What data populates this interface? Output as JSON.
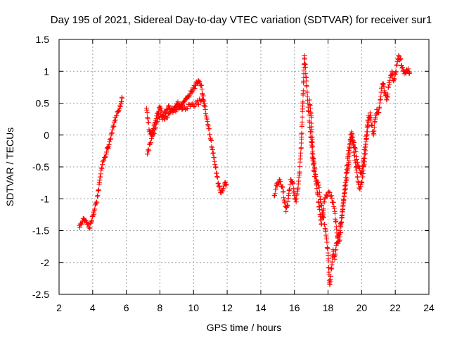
{
  "chart_data": {
    "type": "scatter",
    "title": "Day 195 of 2021, Sidereal Day-to-day VTEC variation (SDTVAR) for receiver sur1",
    "xlabel": "GPS time / hours",
    "ylabel": "SDTVAR / TECUs",
    "xlim": [
      2,
      24
    ],
    "ylim": [
      -2.5,
      1.5
    ],
    "xticks": [
      2,
      4,
      6,
      8,
      10,
      12,
      14,
      16,
      18,
      20,
      22,
      24
    ],
    "xtick_labels": [
      "2",
      "4",
      "6",
      "8",
      "10",
      "12",
      "14",
      "16",
      "18",
      "20",
      "22",
      "24"
    ],
    "yticks": [
      -2.5,
      -2,
      -1.5,
      -1,
      -0.5,
      0,
      0.5,
      1,
      1.5
    ],
    "ytick_labels": [
      "-2.5",
      "-2",
      "-1.5",
      "-1",
      "-0.5",
      "0",
      "0.5",
      "1",
      "1.5"
    ],
    "grid": true,
    "marker": "+",
    "color": "#ff0000",
    "series": [
      {
        "name": "sur1",
        "segments": [
          [
            [
              3.2,
              -1.42
            ],
            [
              3.3,
              -1.4
            ],
            [
              3.4,
              -1.35
            ],
            [
              3.5,
              -1.32
            ],
            [
              3.6,
              -1.34
            ],
            [
              3.7,
              -1.4
            ],
            [
              3.8,
              -1.45
            ],
            [
              3.9,
              -1.38
            ],
            [
              4.0,
              -1.28
            ],
            [
              4.1,
              -1.18
            ],
            [
              4.2,
              -1.08
            ],
            [
              4.3,
              -0.95
            ],
            [
              4.4,
              -0.75
            ],
            [
              4.5,
              -0.55
            ],
            [
              4.6,
              -0.42
            ],
            [
              4.7,
              -0.35
            ],
            [
              4.8,
              -0.3
            ],
            [
              4.9,
              -0.2
            ],
            [
              5.0,
              -0.1
            ],
            [
              5.1,
              0.0
            ],
            [
              5.2,
              0.12
            ],
            [
              5.3,
              0.22
            ],
            [
              5.4,
              0.3
            ],
            [
              5.5,
              0.36
            ],
            [
              5.6,
              0.42
            ],
            [
              5.7,
              0.52
            ],
            [
              5.75,
              0.58
            ]
          ],
          [
            [
              7.2,
              0.42
            ],
            [
              7.3,
              0.2
            ],
            [
              7.4,
              0.05
            ],
            [
              7.5,
              0.0
            ],
            [
              7.6,
              0.1
            ],
            [
              7.7,
              0.2
            ],
            [
              7.8,
              0.3
            ],
            [
              7.9,
              0.35
            ],
            [
              8.0,
              0.45
            ],
            [
              8.1,
              0.38
            ],
            [
              8.2,
              0.3
            ],
            [
              8.3,
              0.35
            ],
            [
              8.4,
              0.4
            ],
            [
              8.5,
              0.45
            ],
            [
              8.6,
              0.42
            ],
            [
              8.7,
              0.38
            ],
            [
              8.8,
              0.4
            ],
            [
              8.9,
              0.45
            ],
            [
              9.0,
              0.5
            ],
            [
              9.1,
              0.48
            ],
            [
              9.2,
              0.45
            ],
            [
              9.3,
              0.48
            ],
            [
              9.4,
              0.52
            ],
            [
              9.5,
              0.55
            ],
            [
              9.6,
              0.58
            ],
            [
              9.7,
              0.6
            ],
            [
              9.8,
              0.65
            ],
            [
              9.9,
              0.68
            ],
            [
              10.0,
              0.72
            ],
            [
              10.1,
              0.78
            ],
            [
              10.2,
              0.82
            ],
            [
              10.3,
              0.85
            ],
            [
              10.4,
              0.8
            ],
            [
              10.5,
              0.72
            ],
            [
              10.6,
              0.55
            ],
            [
              10.7,
              0.4
            ],
            [
              10.8,
              0.25
            ],
            [
              10.9,
              0.1
            ],
            [
              11.0,
              -0.05
            ],
            [
              11.1,
              -0.2
            ],
            [
              11.2,
              -0.35
            ],
            [
              11.3,
              -0.5
            ],
            [
              11.4,
              -0.65
            ],
            [
              11.5,
              -0.8
            ],
            [
              11.6,
              -0.9
            ],
            [
              11.7,
              -0.88
            ],
            [
              11.8,
              -0.8
            ],
            [
              11.9,
              -0.75
            ],
            [
              11.95,
              -0.77
            ]
          ],
          [
            [
              7.25,
              -0.3
            ],
            [
              7.4,
              -0.15
            ],
            [
              7.6,
              0.0
            ],
            [
              7.8,
              0.2
            ],
            [
              8.0,
              0.3
            ],
            [
              8.3,
              0.25
            ],
            [
              8.6,
              0.35
            ],
            [
              9.0,
              0.4
            ],
            [
              9.4,
              0.42
            ],
            [
              9.8,
              0.45
            ],
            [
              10.2,
              0.5
            ],
            [
              10.5,
              0.55
            ],
            [
              10.7,
              0.45
            ]
          ],
          [
            [
              14.8,
              -0.95
            ],
            [
              14.9,
              -0.85
            ],
            [
              15.0,
              -0.75
            ],
            [
              15.1,
              -0.7
            ],
            [
              15.2,
              -0.78
            ],
            [
              15.3,
              -0.82
            ],
            [
              15.5,
              -1.2
            ],
            [
              15.6,
              -1.1
            ],
            [
              15.7,
              -0.85
            ],
            [
              15.8,
              -0.7
            ],
            [
              15.9,
              -0.75
            ],
            [
              16.0,
              -0.95
            ],
            [
              16.1,
              -1.05
            ],
            [
              16.2,
              -0.85
            ],
            [
              16.3,
              -0.6
            ],
            [
              16.4,
              -0.2
            ],
            [
              16.5,
              0.5
            ],
            [
              16.55,
              0.9
            ],
            [
              16.6,
              1.25
            ],
            [
              16.7,
              0.9
            ],
            [
              16.8,
              0.5
            ],
            [
              16.9,
              0.2
            ],
            [
              17.0,
              -0.1
            ],
            [
              17.1,
              -0.4
            ],
            [
              17.2,
              -0.65
            ],
            [
              17.3,
              -0.7
            ],
            [
              17.4,
              -0.75
            ],
            [
              17.5,
              -0.9
            ],
            [
              17.6,
              -1.1
            ],
            [
              17.7,
              -1.25
            ],
            [
              17.8,
              -1.4
            ],
            [
              17.9,
              -1.6
            ],
            [
              18.0,
              -1.85
            ],
            [
              18.05,
              -2.15
            ],
            [
              18.1,
              -2.35
            ],
            [
              18.2,
              -2.1
            ],
            [
              18.3,
              -1.8
            ],
            [
              18.4,
              -1.95
            ],
            [
              18.5,
              -1.7
            ],
            [
              18.6,
              -1.6
            ],
            [
              18.7,
              -1.5
            ],
            [
              18.8,
              -1.3
            ],
            [
              18.9,
              -1.1
            ],
            [
              19.0,
              -0.9
            ],
            [
              19.1,
              -0.7
            ],
            [
              19.2,
              -0.5
            ],
            [
              19.3,
              -0.2
            ],
            [
              19.4,
              0.0
            ],
            [
              19.5,
              -0.15
            ],
            [
              19.6,
              -0.4
            ],
            [
              19.7,
              -0.55
            ],
            [
              19.8,
              -0.75
            ],
            [
              19.9,
              -0.85
            ],
            [
              20.0,
              -0.75
            ],
            [
              20.1,
              -0.55
            ],
            [
              20.2,
              -0.3
            ],
            [
              20.3,
              0.0
            ],
            [
              20.4,
              0.2
            ],
            [
              20.5,
              0.35
            ],
            [
              20.6,
              0.15
            ],
            [
              20.7,
              0.0
            ],
            [
              20.8,
              0.25
            ],
            [
              20.9,
              0.4
            ],
            [
              21.0,
              0.35
            ],
            [
              21.1,
              0.55
            ],
            [
              21.2,
              0.75
            ],
            [
              21.3,
              0.8
            ],
            [
              21.4,
              0.65
            ],
            [
              21.5,
              0.55
            ],
            [
              21.6,
              0.75
            ],
            [
              21.7,
              0.9
            ],
            [
              21.8,
              1.0
            ],
            [
              21.9,
              0.85
            ],
            [
              22.0,
              0.95
            ],
            [
              22.1,
              1.1
            ],
            [
              22.2,
              1.25
            ],
            [
              22.3,
              1.2
            ],
            [
              22.4,
              1.05
            ],
            [
              22.5,
              1.0
            ],
            [
              22.6,
              0.98
            ],
            [
              22.7,
              1.02
            ],
            [
              22.8,
              1.0
            ],
            [
              22.85,
              0.98
            ]
          ],
          [
            [
              16.9,
              0.55
            ],
            [
              17.0,
              0.3
            ],
            [
              17.1,
              -0.3
            ],
            [
              17.6,
              -1.4
            ],
            [
              17.8,
              -1.0
            ],
            [
              18.0,
              -0.9
            ],
            [
              18.2,
              -0.95
            ],
            [
              18.4,
              -1.2
            ],
            [
              18.6,
              -1.7
            ],
            [
              18.7,
              -1.65
            ],
            [
              19.0,
              -0.8
            ],
            [
              19.2,
              -0.3
            ],
            [
              19.4,
              0.05
            ],
            [
              19.6,
              -0.2
            ],
            [
              19.8,
              -0.5
            ],
            [
              20.0,
              -0.6
            ],
            [
              20.2,
              -0.2
            ],
            [
              20.4,
              0.3
            ]
          ]
        ]
      }
    ]
  }
}
